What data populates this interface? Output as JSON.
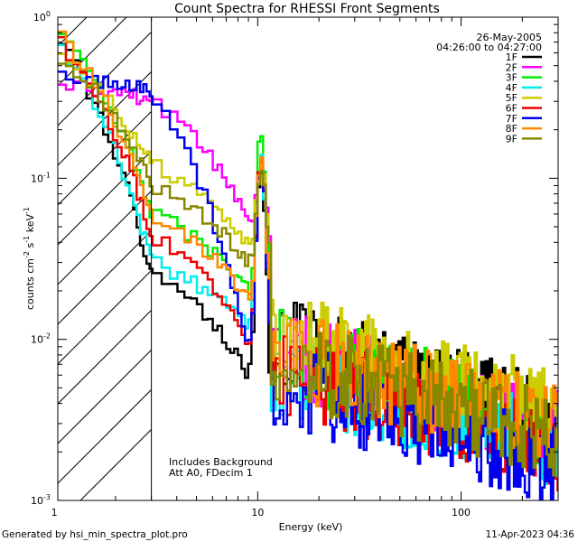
{
  "chart_data": {
    "type": "line",
    "title": "Count Spectra for RHESSI Front Segments",
    "xlabel": "Energy (keV)",
    "ylabel_parts": [
      "counts cm",
      "-2",
      " s",
      "-1",
      " keV",
      "-1"
    ],
    "xscale": "log",
    "yscale": "log",
    "xlim": [
      1.04,
      300
    ],
    "ylim": [
      0.001,
      1.0
    ],
    "x_tick_labels": [
      {
        "value": 1,
        "label": "1"
      },
      {
        "value": 10,
        "label": "10"
      },
      {
        "value": 100,
        "label": "100"
      }
    ],
    "y_tick_labels": [
      {
        "value": 1,
        "base": "10",
        "exp": "0"
      },
      {
        "value": 0.1,
        "base": "10",
        "exp": "-1"
      },
      {
        "value": 0.01,
        "base": "10",
        "exp": "-2"
      },
      {
        "value": 0.001,
        "base": "10",
        "exp": "-3"
      }
    ],
    "date": "26-May-2005",
    "time_range": "04:26:00 to 04:27:00",
    "annotations": [
      "Includes Background",
      "Att A0, FDecim 1"
    ],
    "excluded_region": {
      "from_kev": 1.04,
      "to_kev": 3.0
    },
    "series": [
      {
        "name": "1F",
        "color": "#000000",
        "start": 0.75,
        "floor": 0.0045,
        "dip": 0.025,
        "dipEnd": 0.006,
        "peak": 0.11,
        "tail": 0.0045,
        "phase": 1
      },
      {
        "name": "2F",
        "color": "#ff00ff",
        "start": 0.38,
        "floor": 0.009,
        "dip": 0.3,
        "dipEnd": 0.055,
        "peak": 0.12,
        "tail": 0.004,
        "phase": 2
      },
      {
        "name": "3F",
        "color": "#00ee00",
        "start": 0.82,
        "floor": 0.008,
        "dip": 0.06,
        "dipEnd": 0.02,
        "peak": 0.19,
        "tail": 0.004,
        "phase": 3
      },
      {
        "name": "4F",
        "color": "#00eeee",
        "start": 0.7,
        "floor": 0.003,
        "dip": 0.03,
        "dipEnd": 0.012,
        "peak": 0.13,
        "tail": 0.003,
        "phase": 4
      },
      {
        "name": "5F",
        "color": "#cccc00",
        "start": 0.58,
        "floor": 0.006,
        "dip": 0.12,
        "dipEnd": 0.04,
        "peak": 0.13,
        "tail": 0.005,
        "phase": 5
      },
      {
        "name": "6F",
        "color": "#ee0000",
        "start": 0.75,
        "floor": 0.0035,
        "dip": 0.045,
        "dipEnd": 0.01,
        "peak": 0.12,
        "tail": 0.003,
        "phase": 6
      },
      {
        "name": "7F",
        "color": "#0000ee",
        "start": 0.42,
        "floor": 0.0025,
        "dip": 0.36,
        "dipEnd": 0.009,
        "peak": 0.12,
        "tail": 0.0025,
        "phase": 7
      },
      {
        "name": "8F",
        "color": "#ff8800",
        "start": 0.78,
        "floor": 0.005,
        "dip": 0.06,
        "dipEnd": 0.018,
        "peak": 0.13,
        "tail": 0.004,
        "phase": 8
      },
      {
        "name": "9F",
        "color": "#888800",
        "start": 0.6,
        "floor": 0.0045,
        "dip": 0.09,
        "dipEnd": 0.03,
        "peak": 0.12,
        "tail": 0.0035,
        "phase": 9
      }
    ]
  },
  "footer": {
    "generated_by": "Generated by hsi_min_spectra_plot.pro",
    "timestamp": "11-Apr-2023 04:36"
  }
}
